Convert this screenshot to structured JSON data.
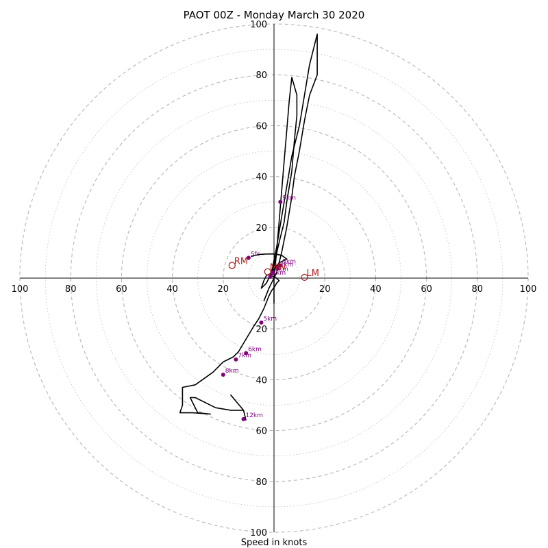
{
  "chart_data": {
    "type": "hodograph",
    "title": "PAOT 00Z - Monday March 30 2020",
    "xlabel": "Speed in knots",
    "range_knots": 100,
    "ring_step_knots": 20,
    "ticks": {
      "x_left": [
        "100",
        "80",
        "60",
        "40",
        "20"
      ],
      "x_right": [
        "20",
        "40",
        "60",
        "80",
        "100"
      ],
      "y_up": [
        "20",
        "40",
        "60",
        "80",
        "100"
      ],
      "y_down": [
        "20",
        "40",
        "60",
        "80",
        "100"
      ]
    },
    "hodograph_trace_uv_kt": [
      [
        -9,
        8.5
      ],
      [
        -6,
        9.3
      ],
      [
        -3,
        9.5
      ],
      [
        0,
        9.5
      ],
      [
        3,
        9
      ],
      [
        5,
        7.5
      ],
      [
        2,
        6
      ],
      [
        0.5,
        4
      ],
      [
        -1,
        2.5
      ],
      [
        -1.5,
        1.5
      ],
      [
        -1,
        1
      ],
      [
        1,
        0
      ],
      [
        2,
        -1
      ],
      [
        1,
        -2
      ],
      [
        0.5,
        -3
      ],
      [
        -1,
        -5
      ],
      [
        -2,
        -7
      ],
      [
        -4,
        -12
      ],
      [
        -6,
        -16
      ],
      [
        -8,
        -19
      ],
      [
        -11,
        -24
      ],
      [
        -14,
        -29
      ],
      [
        -16,
        -31
      ],
      [
        -20,
        -33
      ],
      [
        -24,
        -37
      ],
      [
        -31,
        -42
      ],
      [
        -36,
        -43
      ],
      [
        -36,
        -50
      ],
      [
        -37,
        -53
      ],
      [
        -32,
        -53
      ],
      [
        -25,
        -53.5
      ],
      [
        -30,
        -53
      ],
      [
        -33,
        -47
      ],
      [
        -31,
        -47
      ],
      [
        -23,
        -51
      ],
      [
        -17,
        -52
      ],
      [
        -12,
        -52
      ],
      [
        -17,
        -46
      ],
      [
        -12,
        -52
      ],
      [
        -11,
        -56
      ]
    ],
    "hodograph_jet_uv_kt": [
      [
        -4,
        -9
      ],
      [
        -2,
        -4
      ],
      [
        1,
        2
      ],
      [
        3,
        10
      ],
      [
        5,
        20
      ],
      [
        7,
        32
      ],
      [
        8,
        40
      ],
      [
        10,
        50
      ],
      [
        12,
        62
      ],
      [
        14,
        72
      ],
      [
        17,
        80
      ],
      [
        17,
        96
      ],
      [
        14,
        84
      ],
      [
        12,
        72
      ],
      [
        10,
        60
      ],
      [
        7,
        48
      ],
      [
        5,
        36
      ],
      [
        3,
        24
      ],
      [
        1,
        12
      ],
      [
        -1,
        2
      ],
      [
        -3,
        -2
      ],
      [
        -5,
        -4
      ],
      [
        -4,
        -1
      ],
      [
        -3,
        1
      ],
      [
        -1,
        2
      ],
      [
        0,
        5
      ],
      [
        2,
        14
      ],
      [
        4,
        22
      ],
      [
        5,
        30
      ],
      [
        7,
        42
      ],
      [
        8,
        54
      ],
      [
        9,
        64
      ],
      [
        9,
        72
      ],
      [
        7,
        79
      ],
      [
        6,
        70
      ],
      [
        5,
        58
      ],
      [
        4,
        46
      ],
      [
        3,
        34
      ],
      [
        2,
        22
      ],
      [
        1,
        10
      ],
      [
        0,
        0
      ],
      [
        0,
        -5
      ],
      [
        0,
        -10
      ]
    ],
    "height_markers": [
      {
        "label": "Sfc",
        "u": -10,
        "v": 8
      },
      {
        "label": "3km",
        "u": 2.5,
        "v": 5
      },
      {
        "label": "2km",
        "u": 1.5,
        "v": 3.8
      },
      {
        "label": "1km",
        "u": -0.5,
        "v": 2
      },
      {
        "label": "4km",
        "u": -1.5,
        "v": 0.5
      },
      {
        "label": "5km",
        "u": -5,
        "v": -17.5
      },
      {
        "label": "6km",
        "u": -11,
        "v": -29.5
      },
      {
        "label": "7km",
        "u": -15,
        "v": -32
      },
      {
        "label": "8km",
        "u": -20,
        "v": -38
      },
      {
        "label": "9km",
        "u": 2.5,
        "v": 30
      },
      {
        "label": "12km",
        "u": -12,
        "v": -55.5
      }
    ],
    "storm_motion": [
      {
        "label": "RM",
        "u": -16.5,
        "v": 5
      },
      {
        "label": "LM",
        "u": 12,
        "v": 0.3
      },
      {
        "label": "MW",
        "u": -2.5,
        "v": 2.5
      }
    ],
    "colors": {
      "ring": "#bbbbbb",
      "trace": "#000000",
      "height_marker": "#800080",
      "storm_motion": "#b22222"
    }
  }
}
